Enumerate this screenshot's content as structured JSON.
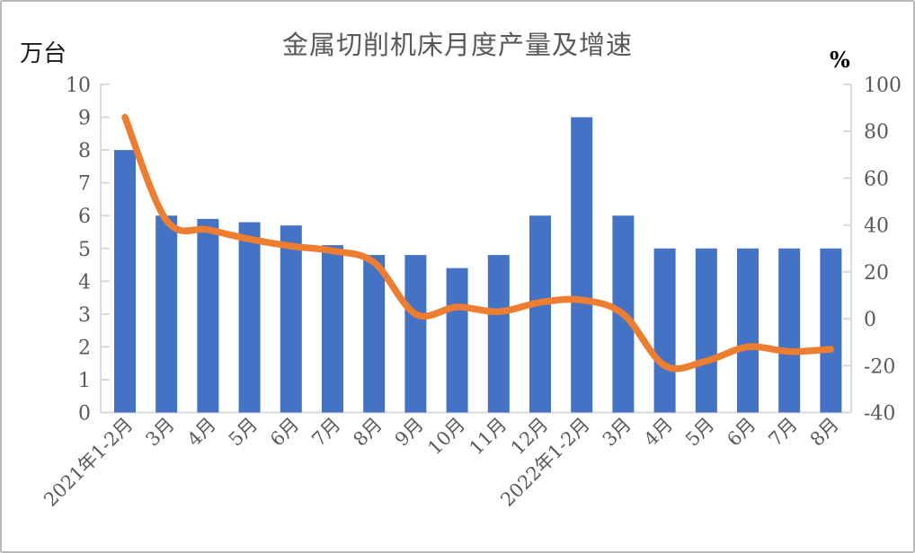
{
  "window": {
    "background": "#ffffff",
    "border_color": "#b9b9b9"
  },
  "chart_data": {
    "type": "bar",
    "title": "金属切削机床月度产量及增速",
    "categories": [
      "2021年1-2月",
      "3月",
      "4月",
      "5月",
      "6月",
      "7月",
      "8月",
      "9月",
      "10月",
      "11月",
      "12月",
      "2022年1-2月",
      "3月",
      "4月",
      "5月",
      "6月",
      "7月",
      "8月"
    ],
    "series": [
      {
        "role": "production-bars",
        "type": "bar",
        "axis": "left",
        "values": [
          8.0,
          6.0,
          5.9,
          5.8,
          5.7,
          5.1,
          4.8,
          4.8,
          4.4,
          4.8,
          6.0,
          9.0,
          6.0,
          5.0,
          5.0,
          5.0,
          5.0,
          5.0
        ],
        "color": "#4472C4"
      },
      {
        "role": "growth-line",
        "type": "line",
        "axis": "right",
        "values": [
          86,
          42,
          38,
          34,
          31,
          29,
          24,
          2,
          5,
          3,
          7,
          8,
          2,
          -20,
          -18,
          -12,
          -14,
          -13
        ],
        "color": "#ED7D31",
        "smooth": true
      }
    ],
    "left_axis": {
      "unit": "万台",
      "min": 0,
      "max": 10,
      "step": 1,
      "ticks": [
        "0",
        "1",
        "2",
        "3",
        "4",
        "5",
        "6",
        "7",
        "8",
        "9",
        "10"
      ]
    },
    "right_axis": {
      "unit": "%",
      "min": -40,
      "max": 100,
      "step": 20,
      "ticks": [
        "-40",
        "-20",
        "0",
        "20",
        "40",
        "60",
        "80",
        "100"
      ]
    },
    "grid": false,
    "legend": "none",
    "style": {
      "axis_color": "#d9d9d9",
      "tick_label_color": "#595959",
      "title_color": "#595959",
      "x_label_rotation_deg": -45
    }
  }
}
